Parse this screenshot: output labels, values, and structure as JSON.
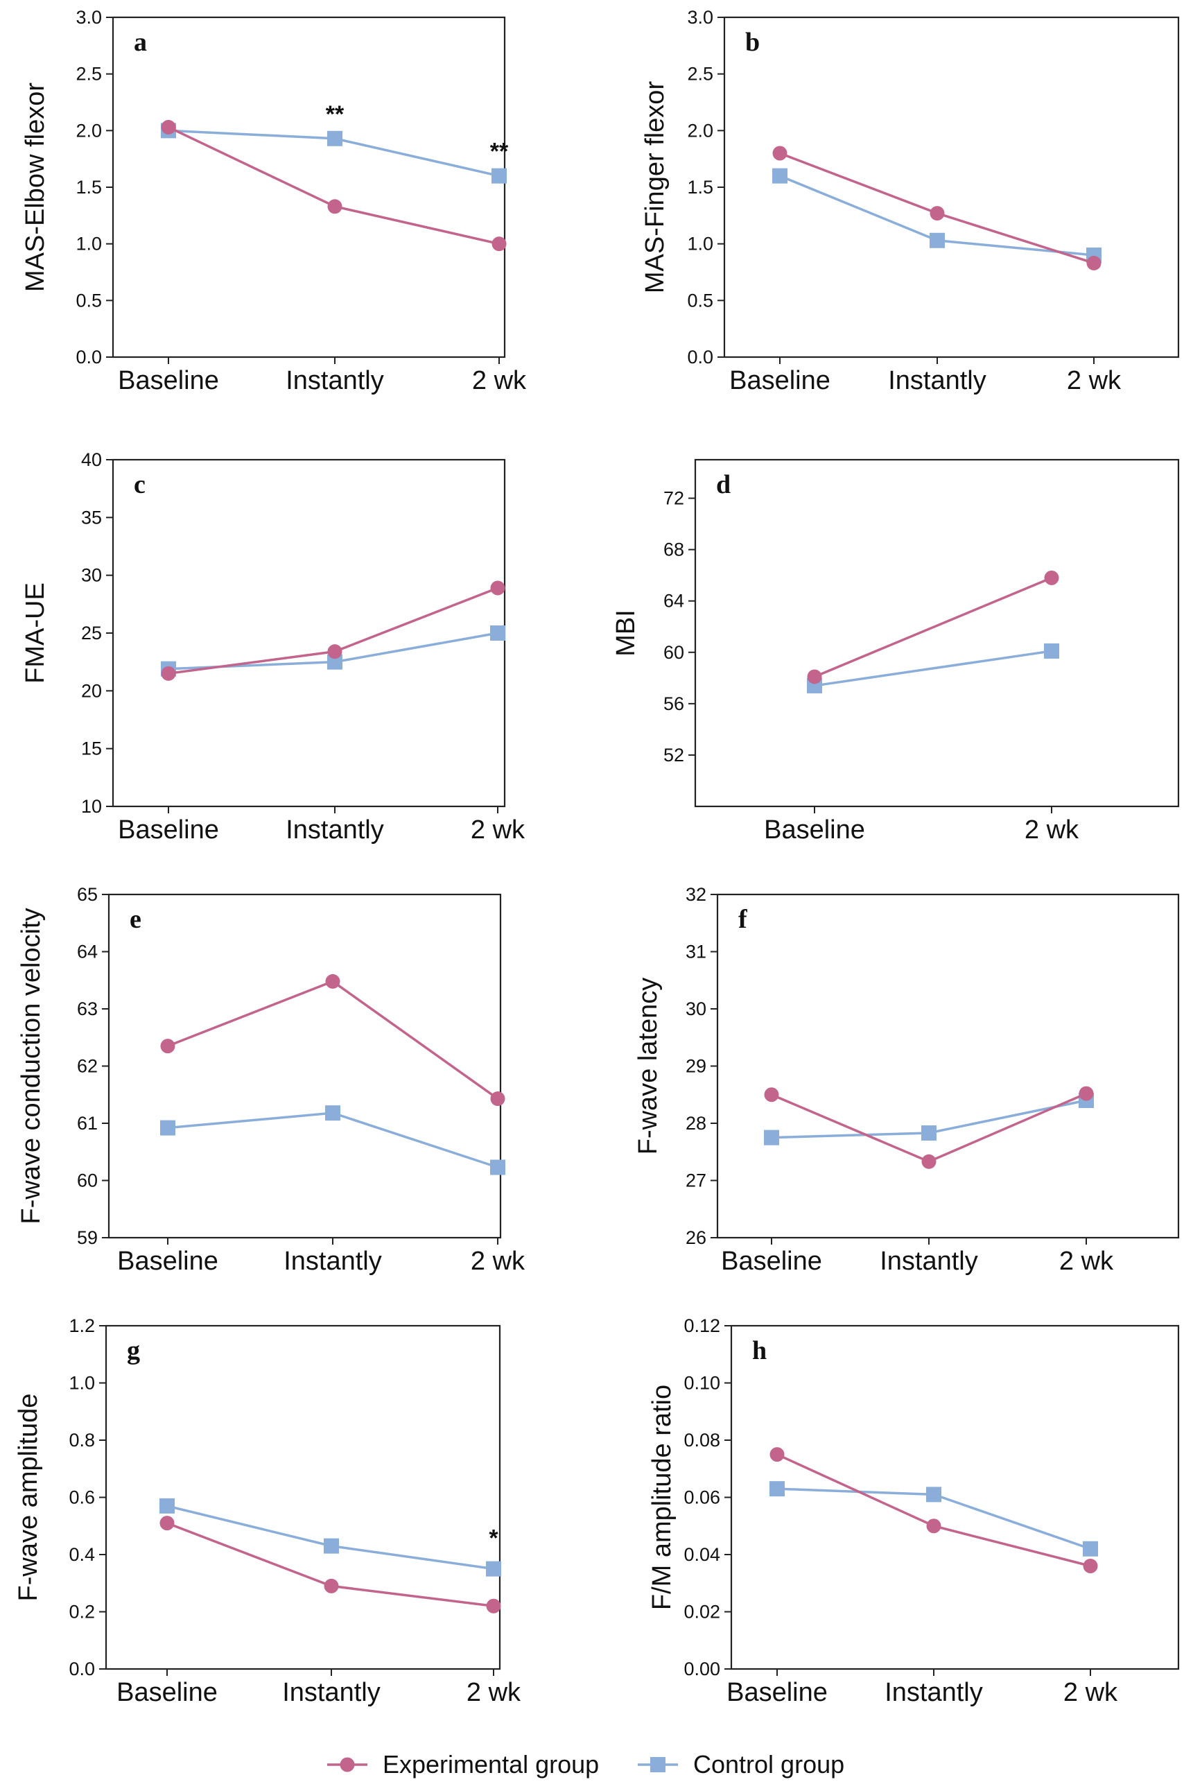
{
  "series_colors": {
    "Experimental group": "#c2648c",
    "Control group": "#8aaed9"
  },
  "legend": [
    {
      "name": "Experimental group",
      "marker": "circle"
    },
    {
      "name": "Control group",
      "marker": "square"
    }
  ],
  "chart_data": [
    {
      "type": "line",
      "panel": "a",
      "ylabel": "MAS-Elbow flexor",
      "categories": [
        "Baseline",
        "Instantly",
        "2 wk"
      ],
      "ylim": [
        0,
        3.0
      ],
      "yticks": [
        "0.0",
        "0.5",
        "1.0",
        "1.5",
        "2.0",
        "2.5",
        "3.0"
      ],
      "series": [
        {
          "name": "Experimental group",
          "values": [
            2.03,
            1.33,
            1.0
          ]
        },
        {
          "name": "Control group",
          "values": [
            2.0,
            1.93,
            1.6
          ]
        }
      ],
      "annotations": [
        {
          "category": "Instantly",
          "text": "**",
          "y": 2.15
        },
        {
          "category": "2 wk",
          "text": "**",
          "y": 1.82
        }
      ]
    },
    {
      "type": "line",
      "panel": "b",
      "ylabel": "MAS-Finger flexor",
      "categories": [
        "Baseline",
        "Instantly",
        "2 wk"
      ],
      "ylim": [
        0,
        3.0
      ],
      "yticks": [
        "0.0",
        "0.5",
        "1.0",
        "1.5",
        "2.0",
        "2.5",
        "3.0"
      ],
      "series": [
        {
          "name": "Experimental group",
          "values": [
            1.8,
            1.27,
            0.83
          ]
        },
        {
          "name": "Control group",
          "values": [
            1.6,
            1.03,
            0.9
          ]
        }
      ],
      "annotations": []
    },
    {
      "type": "line",
      "panel": "c",
      "ylabel": "FMA-UE",
      "categories": [
        "Baseline",
        "Instantly",
        "2 wk"
      ],
      "ylim": [
        10,
        40
      ],
      "yticks": [
        "10",
        "15",
        "20",
        "25",
        "30",
        "35",
        "40"
      ],
      "series": [
        {
          "name": "Experimental group",
          "values": [
            21.5,
            23.4,
            28.9
          ]
        },
        {
          "name": "Control group",
          "values": [
            21.9,
            22.5,
            25.0
          ]
        }
      ],
      "annotations": []
    },
    {
      "type": "line",
      "panel": "d",
      "ylabel": "MBI",
      "categories": [
        "Baseline",
        "2 wk"
      ],
      "ylim": [
        48,
        75
      ],
      "yticks": [
        "52",
        "56",
        "60",
        "64",
        "68",
        "72"
      ],
      "series": [
        {
          "name": "Experimental group",
          "values": [
            58.1,
            65.8
          ]
        },
        {
          "name": "Control group",
          "values": [
            57.4,
            60.1
          ]
        }
      ],
      "annotations": []
    },
    {
      "type": "line",
      "panel": "e",
      "ylabel": "F-wave conduction velocity",
      "categories": [
        "Baseline",
        "Instantly",
        "2 wk"
      ],
      "ylim": [
        59,
        65
      ],
      "yticks": [
        "59",
        "60",
        "61",
        "62",
        "63",
        "64",
        "65"
      ],
      "series": [
        {
          "name": "Experimental group",
          "values": [
            62.35,
            63.48,
            61.43
          ]
        },
        {
          "name": "Control group",
          "values": [
            60.92,
            61.18,
            60.23
          ]
        }
      ],
      "annotations": []
    },
    {
      "type": "line",
      "panel": "f",
      "ylabel": "F-wave latency",
      "categories": [
        "Baseline",
        "Instantly",
        "2 wk"
      ],
      "ylim": [
        26,
        32
      ],
      "yticks": [
        "26",
        "27",
        "28",
        "29",
        "30",
        "31",
        "32"
      ],
      "series": [
        {
          "name": "Experimental group",
          "values": [
            28.5,
            27.33,
            28.52
          ]
        },
        {
          "name": "Control group",
          "values": [
            27.75,
            27.83,
            28.4
          ]
        }
      ],
      "annotations": []
    },
    {
      "type": "line",
      "panel": "g",
      "ylabel": "F-wave amplitude",
      "categories": [
        "Baseline",
        "Instantly",
        "2 wk"
      ],
      "ylim": [
        0,
        1.2
      ],
      "yticks": [
        "0.0",
        "0.2",
        "0.4",
        "0.6",
        "0.8",
        "1.0",
        "1.2"
      ],
      "series": [
        {
          "name": "Experimental group",
          "values": [
            0.51,
            0.29,
            0.22
          ]
        },
        {
          "name": "Control group",
          "values": [
            0.57,
            0.43,
            0.35
          ]
        }
      ],
      "annotations": [
        {
          "category": "2 wk",
          "text": "*",
          "y": 0.46
        }
      ]
    },
    {
      "type": "line",
      "panel": "h",
      "ylabel": "F/M amplitude ratio",
      "categories": [
        "Baseline",
        "Instantly",
        "2 wk"
      ],
      "ylim": [
        0,
        0.12
      ],
      "yticks": [
        "0.00",
        "0.02",
        "0.04",
        "0.06",
        "0.08",
        "0.10",
        "0.12"
      ],
      "series": [
        {
          "name": "Experimental group",
          "values": [
            0.075,
            0.05,
            0.036
          ]
        },
        {
          "name": "Control group",
          "values": [
            0.063,
            0.061,
            0.042
          ]
        }
      ],
      "annotations": []
    }
  ]
}
